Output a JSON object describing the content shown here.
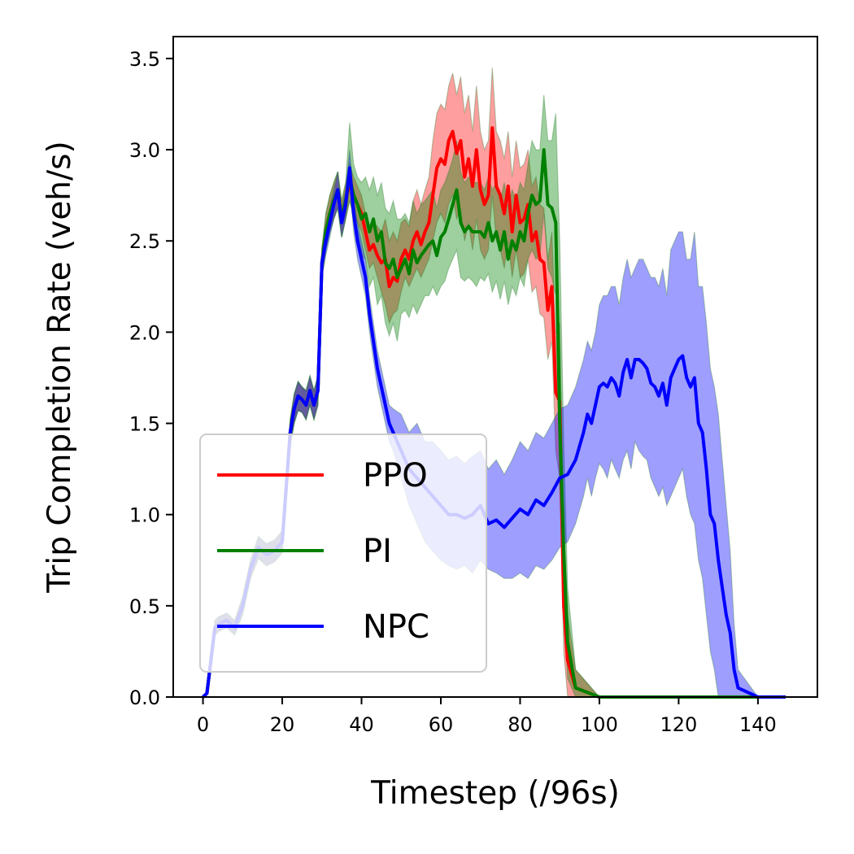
{
  "chart_data": {
    "type": "line",
    "title": "",
    "xlabel": "Timestep (/96s)",
    "ylabel": "Trip Completion Rate (veh/s)",
    "xlim": [
      -7.5,
      155
    ],
    "ylim": [
      0,
      3.62
    ],
    "xticks": [
      0,
      20,
      40,
      60,
      80,
      100,
      120,
      140
    ],
    "yticks": [
      0.0,
      0.5,
      1.0,
      1.5,
      2.0,
      2.5,
      3.0,
      3.5
    ],
    "xtick_labels": [
      "0",
      "20",
      "40",
      "60",
      "80",
      "100",
      "120",
      "140"
    ],
    "ytick_labels": [
      "0.0",
      "0.5",
      "1.0",
      "1.5",
      "2.0",
      "2.5",
      "3.0",
      "3.5"
    ],
    "grid": false,
    "legend_position": "lower-left",
    "series": [
      {
        "name": "PPO",
        "color": "#ff0000",
        "band_color": "#ff0000",
        "x": [
          0,
          1,
          2,
          3,
          4,
          6,
          8,
          10,
          12,
          14,
          16,
          18,
          20,
          22,
          23,
          24,
          25,
          26,
          27,
          28,
          29,
          30,
          31,
          32,
          33,
          34,
          35,
          36,
          37,
          38,
          39,
          40,
          41,
          42,
          43,
          44,
          45,
          46,
          47,
          48,
          49,
          50,
          51,
          52,
          53,
          54,
          55,
          56,
          57,
          58,
          59,
          60,
          61,
          62,
          63,
          64,
          65,
          66,
          67,
          68,
          69,
          70,
          71,
          72,
          73,
          74,
          75,
          76,
          77,
          78,
          79,
          80,
          81,
          82,
          83,
          84,
          85,
          86,
          87,
          88,
          89,
          90,
          91,
          92,
          94,
          100,
          110,
          120,
          130,
          140,
          147
        ],
        "y": [
          0,
          0.02,
          0.2,
          0.38,
          0.4,
          0.42,
          0.38,
          0.5,
          0.7,
          0.82,
          0.78,
          0.8,
          0.85,
          1.45,
          1.58,
          1.65,
          1.63,
          1.6,
          1.68,
          1.6,
          1.68,
          2.38,
          2.55,
          2.65,
          2.72,
          2.78,
          2.62,
          2.72,
          2.82,
          2.75,
          2.7,
          2.65,
          2.55,
          2.45,
          2.48,
          2.42,
          2.38,
          2.4,
          2.25,
          2.3,
          2.28,
          2.4,
          2.45,
          2.4,
          2.5,
          2.55,
          2.48,
          2.55,
          2.6,
          2.75,
          2.9,
          2.95,
          2.92,
          3.05,
          3.1,
          2.98,
          3.05,
          2.85,
          2.95,
          2.8,
          3.0,
          2.78,
          2.7,
          2.75,
          3.12,
          2.8,
          2.75,
          2.65,
          2.8,
          2.55,
          2.75,
          2.6,
          2.62,
          2.7,
          2.5,
          2.55,
          2.4,
          2.38,
          2.12,
          2.25,
          1.67,
          1.62,
          0.5,
          0.2,
          0.05,
          0,
          0,
          0,
          0,
          0,
          0
        ],
        "lower": [
          0,
          0.02,
          0.18,
          0.34,
          0.36,
          0.38,
          0.34,
          0.45,
          0.65,
          0.76,
          0.72,
          0.74,
          0.79,
          1.38,
          1.5,
          1.57,
          1.56,
          1.52,
          1.6,
          1.52,
          1.6,
          2.3,
          2.45,
          2.55,
          2.62,
          2.68,
          2.52,
          2.62,
          2.72,
          2.65,
          2.6,
          2.55,
          2.45,
          2.35,
          2.38,
          2.3,
          2.22,
          2.15,
          2.05,
          2.1,
          2.12,
          2.22,
          2.3,
          2.25,
          2.3,
          2.35,
          2.3,
          2.35,
          2.4,
          2.5,
          2.6,
          2.65,
          2.6,
          2.7,
          2.75,
          2.62,
          2.68,
          2.5,
          2.6,
          2.45,
          2.62,
          2.45,
          2.4,
          2.45,
          2.75,
          2.5,
          2.45,
          2.35,
          2.5,
          2.3,
          2.45,
          2.3,
          2.32,
          2.4,
          2.22,
          2.25,
          2.1,
          2.08,
          1.85,
          1.95,
          1.35,
          1.2,
          0.25,
          0,
          0,
          0,
          0,
          0,
          0,
          0,
          0
        ],
        "upper": [
          0,
          0.02,
          0.22,
          0.42,
          0.44,
          0.46,
          0.42,
          0.55,
          0.75,
          0.88,
          0.84,
          0.86,
          0.91,
          1.52,
          1.66,
          1.73,
          1.7,
          1.68,
          1.76,
          1.68,
          1.76,
          2.46,
          2.65,
          2.75,
          2.82,
          2.88,
          2.72,
          2.82,
          2.92,
          2.85,
          2.8,
          2.75,
          2.65,
          2.58,
          2.6,
          2.58,
          2.55,
          2.62,
          2.5,
          2.55,
          2.5,
          2.6,
          2.62,
          2.58,
          2.72,
          2.78,
          2.7,
          2.78,
          2.85,
          3.05,
          3.2,
          3.25,
          3.22,
          3.35,
          3.42,
          3.3,
          3.4,
          3.2,
          3.3,
          3.1,
          3.35,
          3.1,
          3.0,
          3.05,
          3.45,
          3.1,
          3.05,
          2.95,
          3.1,
          2.85,
          3.05,
          2.9,
          2.92,
          3.0,
          2.8,
          2.85,
          2.7,
          2.68,
          2.4,
          2.55,
          2.0,
          2.05,
          0.8,
          0.45,
          0.15,
          0,
          0,
          0,
          0,
          0,
          0
        ]
      },
      {
        "name": "PI",
        "color": "#008000",
        "band_color": "#008000",
        "x": [
          0,
          1,
          2,
          3,
          4,
          6,
          8,
          10,
          12,
          14,
          16,
          18,
          20,
          22,
          23,
          24,
          25,
          26,
          27,
          28,
          29,
          30,
          31,
          32,
          33,
          34,
          35,
          36,
          37,
          38,
          39,
          40,
          41,
          42,
          43,
          44,
          45,
          46,
          47,
          48,
          49,
          50,
          51,
          52,
          53,
          54,
          55,
          56,
          57,
          58,
          59,
          60,
          61,
          62,
          63,
          64,
          65,
          66,
          67,
          68,
          69,
          70,
          71,
          72,
          73,
          74,
          75,
          76,
          77,
          78,
          79,
          80,
          81,
          82,
          83,
          84,
          85,
          86,
          87,
          88,
          89,
          90,
          91,
          92,
          94,
          100,
          110,
          120,
          130,
          140,
          147
        ],
        "y": [
          0,
          0.02,
          0.2,
          0.38,
          0.4,
          0.42,
          0.38,
          0.5,
          0.7,
          0.82,
          0.78,
          0.8,
          0.85,
          1.45,
          1.58,
          1.65,
          1.63,
          1.6,
          1.68,
          1.6,
          1.68,
          2.38,
          2.55,
          2.65,
          2.72,
          2.78,
          2.62,
          2.72,
          2.85,
          2.75,
          2.7,
          2.62,
          2.65,
          2.55,
          2.62,
          2.5,
          2.55,
          2.38,
          2.35,
          2.4,
          2.3,
          2.35,
          2.4,
          2.32,
          2.45,
          2.38,
          2.42,
          2.45,
          2.48,
          2.5,
          2.42,
          2.52,
          2.55,
          2.62,
          2.7,
          2.78,
          2.6,
          2.55,
          2.58,
          2.55,
          2.55,
          2.55,
          2.52,
          2.6,
          2.5,
          2.55,
          2.45,
          2.55,
          2.4,
          2.5,
          2.45,
          2.55,
          2.5,
          2.65,
          2.75,
          2.7,
          2.72,
          3.0,
          2.7,
          2.68,
          2.6,
          1.5,
          0.8,
          0.3,
          0.05,
          0,
          0,
          0,
          0,
          0,
          0
        ],
        "lower": [
          0,
          0.02,
          0.18,
          0.34,
          0.36,
          0.38,
          0.34,
          0.45,
          0.65,
          0.76,
          0.72,
          0.74,
          0.79,
          1.38,
          1.5,
          1.57,
          1.56,
          1.52,
          1.6,
          1.52,
          1.6,
          2.3,
          2.45,
          2.55,
          2.62,
          2.68,
          2.52,
          2.62,
          2.72,
          2.62,
          2.55,
          2.42,
          2.4,
          2.25,
          2.3,
          2.15,
          2.2,
          2.05,
          1.98,
          2.05,
          1.95,
          2.1,
          2.12,
          2.08,
          2.15,
          2.1,
          2.15,
          2.2,
          2.2,
          2.25,
          2.2,
          2.25,
          2.28,
          2.35,
          2.4,
          2.45,
          2.3,
          2.28,
          2.3,
          2.28,
          2.25,
          2.3,
          2.28,
          2.32,
          2.22,
          2.28,
          2.18,
          2.28,
          2.15,
          2.25,
          2.2,
          2.3,
          2.25,
          2.4,
          2.45,
          2.4,
          2.42,
          2.65,
          2.35,
          2.3,
          2.2,
          1.15,
          0.5,
          0.1,
          0,
          0,
          0,
          0,
          0,
          0,
          0
        ],
        "upper": [
          0,
          0.02,
          0.22,
          0.42,
          0.44,
          0.46,
          0.42,
          0.55,
          0.75,
          0.88,
          0.84,
          0.86,
          0.91,
          1.52,
          1.66,
          1.73,
          1.7,
          1.68,
          1.76,
          1.68,
          1.76,
          2.46,
          2.65,
          2.75,
          2.82,
          2.88,
          2.72,
          2.82,
          3.15,
          2.92,
          2.85,
          2.82,
          2.85,
          2.78,
          2.85,
          2.75,
          2.82,
          2.68,
          2.65,
          2.72,
          2.62,
          2.62,
          2.65,
          2.6,
          2.72,
          2.65,
          2.7,
          2.72,
          2.75,
          2.78,
          2.68,
          2.78,
          2.82,
          2.88,
          2.95,
          3.05,
          2.88,
          2.82,
          2.85,
          2.82,
          2.82,
          2.82,
          2.78,
          2.85,
          2.78,
          2.82,
          2.72,
          2.82,
          2.68,
          2.78,
          2.72,
          2.82,
          2.78,
          2.92,
          3.05,
          3.0,
          3.0,
          3.3,
          3.05,
          3.05,
          3.2,
          2.5,
          1.4,
          0.6,
          0.15,
          0,
          0,
          0,
          0,
          0,
          0
        ]
      },
      {
        "name": "NPC",
        "color": "#0000ff",
        "band_color": "#0000ff",
        "x": [
          0,
          1,
          2,
          3,
          4,
          6,
          8,
          10,
          12,
          14,
          16,
          18,
          20,
          22,
          23,
          24,
          25,
          26,
          27,
          28,
          29,
          30,
          31,
          32,
          33,
          34,
          35,
          36,
          37,
          38,
          39,
          40,
          41,
          42,
          43,
          44,
          45,
          46,
          47,
          48,
          50,
          52,
          54,
          56,
          58,
          60,
          62,
          64,
          66,
          68,
          70,
          72,
          74,
          76,
          78,
          80,
          82,
          84,
          86,
          88,
          90,
          92,
          94,
          96,
          97,
          98,
          99,
          100,
          101,
          102,
          103,
          104,
          105,
          106,
          107,
          108,
          109,
          110,
          111,
          112,
          113,
          114,
          115,
          116,
          117,
          118,
          119,
          120,
          121,
          122,
          123,
          124,
          125,
          126,
          127,
          128,
          129,
          130,
          131,
          132,
          133,
          134,
          135,
          140,
          147
        ],
        "y": [
          0,
          0.02,
          0.2,
          0.38,
          0.4,
          0.42,
          0.38,
          0.5,
          0.7,
          0.82,
          0.78,
          0.8,
          0.85,
          1.45,
          1.58,
          1.65,
          1.63,
          1.6,
          1.68,
          1.6,
          1.68,
          2.38,
          2.5,
          2.6,
          2.7,
          2.78,
          2.6,
          2.7,
          2.9,
          2.65,
          2.5,
          2.4,
          2.3,
          2.1,
          1.95,
          1.8,
          1.7,
          1.6,
          1.5,
          1.45,
          1.35,
          1.25,
          1.2,
          1.15,
          1.1,
          1.05,
          1.0,
          1.0,
          0.98,
          1.0,
          1.05,
          0.95,
          0.97,
          0.93,
          0.98,
          1.03,
          1.0,
          1.08,
          1.05,
          1.12,
          1.2,
          1.22,
          1.3,
          1.45,
          1.55,
          1.5,
          1.6,
          1.7,
          1.72,
          1.7,
          1.75,
          1.72,
          1.65,
          1.78,
          1.85,
          1.75,
          1.85,
          1.85,
          1.83,
          1.8,
          1.72,
          1.7,
          1.65,
          1.72,
          1.6,
          1.75,
          1.8,
          1.85,
          1.87,
          1.75,
          1.7,
          1.75,
          1.5,
          1.45,
          1.25,
          1.0,
          0.95,
          0.75,
          0.6,
          0.45,
          0.35,
          0.15,
          0.05,
          0,
          0
        ],
        "lower": [
          0,
          0.02,
          0.18,
          0.34,
          0.36,
          0.38,
          0.34,
          0.45,
          0.65,
          0.76,
          0.72,
          0.74,
          0.79,
          1.38,
          1.5,
          1.57,
          1.56,
          1.52,
          1.6,
          1.52,
          1.6,
          2.3,
          2.42,
          2.52,
          2.62,
          2.68,
          2.52,
          2.62,
          2.8,
          2.55,
          2.4,
          2.3,
          2.2,
          2.0,
          1.85,
          1.7,
          1.6,
          1.5,
          1.4,
          1.35,
          1.2,
          1.05,
          0.95,
          0.85,
          0.8,
          0.75,
          0.72,
          0.7,
          0.72,
          0.68,
          0.75,
          0.7,
          0.68,
          0.65,
          0.65,
          0.68,
          0.65,
          0.72,
          0.7,
          0.75,
          0.82,
          0.85,
          0.95,
          1.1,
          1.2,
          1.1,
          1.2,
          1.28,
          1.25,
          1.2,
          1.3,
          1.25,
          1.2,
          1.3,
          1.35,
          1.25,
          1.4,
          1.35,
          1.32,
          1.3,
          1.2,
          1.15,
          1.1,
          1.15,
          1.05,
          1.1,
          1.15,
          1.2,
          1.25,
          1.1,
          1.0,
          0.95,
          0.75,
          0.65,
          0.45,
          0.25,
          0.15,
          0,
          0,
          0,
          0,
          0,
          0,
          0,
          0
        ],
        "upper": [
          0,
          0.02,
          0.22,
          0.42,
          0.44,
          0.46,
          0.42,
          0.55,
          0.75,
          0.88,
          0.84,
          0.86,
          0.91,
          1.52,
          1.66,
          1.73,
          1.7,
          1.68,
          1.76,
          1.68,
          1.76,
          2.46,
          2.58,
          2.68,
          2.78,
          2.88,
          2.68,
          2.78,
          3.0,
          2.75,
          2.6,
          2.5,
          2.4,
          2.2,
          2.05,
          1.9,
          1.8,
          1.7,
          1.6,
          1.58,
          1.55,
          1.45,
          1.5,
          1.4,
          1.4,
          1.35,
          1.3,
          1.32,
          1.28,
          1.32,
          1.35,
          1.25,
          1.3,
          1.22,
          1.3,
          1.4,
          1.35,
          1.45,
          1.42,
          1.5,
          1.58,
          1.6,
          1.7,
          1.85,
          1.95,
          1.9,
          2.0,
          2.15,
          2.2,
          2.2,
          2.25,
          2.25,
          2.15,
          2.3,
          2.4,
          2.3,
          2.35,
          2.4,
          2.4,
          2.35,
          2.3,
          2.3,
          2.25,
          2.35,
          2.2,
          2.45,
          2.5,
          2.55,
          2.55,
          2.4,
          2.4,
          2.55,
          2.25,
          2.25,
          2.05,
          1.8,
          1.7,
          1.55,
          1.3,
          1.05,
          0.8,
          0.4,
          0.15,
          0,
          0
        ]
      }
    ]
  }
}
